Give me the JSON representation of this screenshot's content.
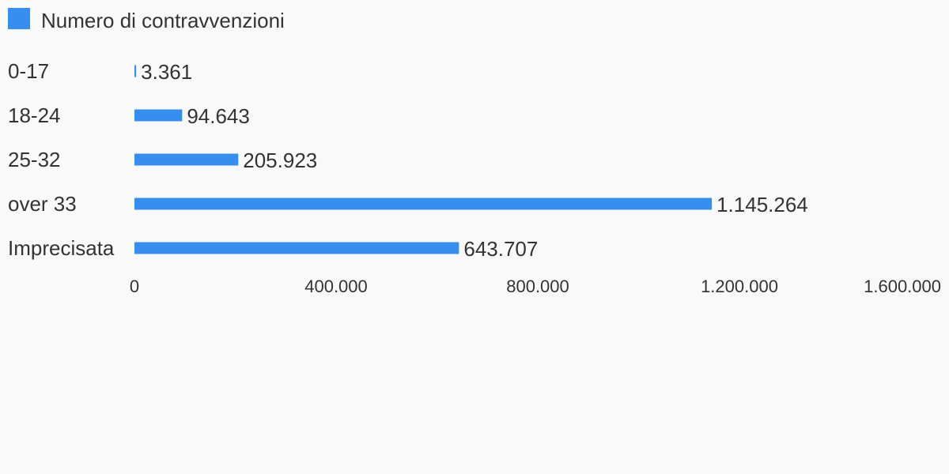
{
  "chart_data": {
    "type": "bar",
    "orientation": "horizontal",
    "categories": [
      "0-17",
      "18-24",
      "25-32",
      "over 33",
      "Imprecisata"
    ],
    "series": [
      {
        "name": "Numero di contravvenzioni",
        "values": [
          3361,
          94643,
          205923,
          1145264,
          643707
        ],
        "value_labels": [
          "3.361",
          "94.643",
          "205.923",
          "1.145.264",
          "643.707"
        ],
        "color": "#368ff0"
      }
    ],
    "xlim": [
      0,
      1600000
    ],
    "x_ticks": [
      0,
      400000,
      800000,
      1200000,
      1600000
    ],
    "x_tick_labels": [
      "0",
      "400.000",
      "800.000",
      "1.200.000",
      "1.600.000"
    ],
    "legend_position": "top-left",
    "grid": false
  }
}
